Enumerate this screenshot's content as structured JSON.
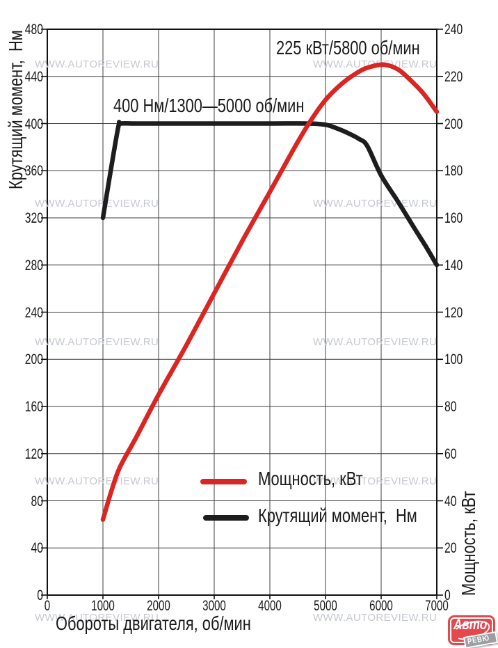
{
  "watermark": {
    "text": "WWW.AUTOREVIEW.RU"
  },
  "logo": {
    "word": "Авто",
    "tag": "РЕВЮ"
  },
  "colors": {
    "power_line": "#d92622",
    "torque_line": "#1d1d1f",
    "grid": "#3f3f3f",
    "frame": "#111111",
    "watermark": "#c5c8cf",
    "tick_text": "#1a1a1a",
    "logo_red": "#e4484d",
    "logo_tag_gray": "#9c9ea1"
  },
  "chart_data": {
    "type": "line",
    "title": "",
    "grid": true,
    "x_axis": {
      "label": "Обороты двигателя, об/мин",
      "min": 0,
      "max": 7000,
      "tick_step": 1000,
      "ticks": [
        0,
        1000,
        2000,
        3000,
        4000,
        5000,
        6000,
        7000
      ]
    },
    "y_left": {
      "label": "Крутящий момент,  Нм",
      "min": 0,
      "max": 480,
      "tick_step": 40,
      "ticks": [
        0,
        40,
        80,
        120,
        160,
        200,
        240,
        280,
        320,
        360,
        400,
        440,
        480
      ]
    },
    "y_right": {
      "label": "Мощность, кВт",
      "min": 0,
      "max": 240,
      "tick_step": 20,
      "ticks": [
        0,
        20,
        40,
        60,
        80,
        100,
        120,
        140,
        160,
        180,
        200,
        220,
        240
      ]
    },
    "annotations": [
      {
        "text": "225 кВт/5800 об/мин"
      },
      {
        "text": "400 Нм/1300—5000 об/мин"
      }
    ],
    "legend": [
      {
        "label": "Мощность, кВт",
        "color": "#d92622"
      },
      {
        "label": "Крутящий момент,  Нм",
        "color": "#1d1d1f"
      }
    ],
    "series": [
      {
        "name": "Крутящий момент",
        "unit": "Нм",
        "axis": "left",
        "color": "#1d1d1f",
        "points": [
          [
            1000,
            320
          ],
          [
            1150,
            363
          ],
          [
            1280,
            398
          ],
          [
            1320,
            400
          ],
          [
            1600,
            400
          ],
          [
            2000,
            400
          ],
          [
            3000,
            400
          ],
          [
            4000,
            400
          ],
          [
            4700,
            400
          ],
          [
            5000,
            399
          ],
          [
            5200,
            396
          ],
          [
            5400,
            392
          ],
          [
            5600,
            387
          ],
          [
            5750,
            381
          ],
          [
            6000,
            356
          ],
          [
            6300,
            334
          ],
          [
            6600,
            311
          ],
          [
            6800,
            296
          ],
          [
            7000,
            280
          ]
        ]
      },
      {
        "name": "Мощность",
        "unit": "кВт",
        "axis": "right",
        "color": "#d92622",
        "points": [
          [
            1000,
            32
          ],
          [
            1150,
            44
          ],
          [
            1300,
            54
          ],
          [
            1600,
            67
          ],
          [
            2000,
            85
          ],
          [
            2500,
            106
          ],
          [
            3000,
            128
          ],
          [
            3500,
            150
          ],
          [
            4000,
            171
          ],
          [
            4400,
            188
          ],
          [
            4700,
            200
          ],
          [
            5000,
            210
          ],
          [
            5300,
            217
          ],
          [
            5600,
            222
          ],
          [
            5800,
            224
          ],
          [
            6050,
            225
          ],
          [
            6300,
            223
          ],
          [
            6500,
            219
          ],
          [
            6750,
            213
          ],
          [
            7000,
            205
          ]
        ]
      }
    ]
  }
}
